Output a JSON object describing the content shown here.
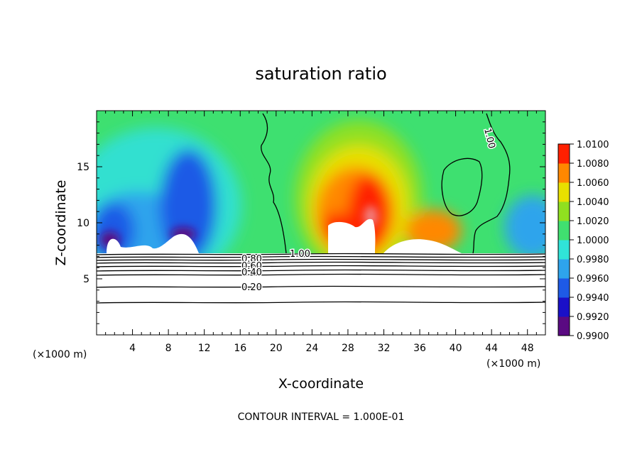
{
  "chart_data": {
    "type": "heatmap",
    "title": "saturation ratio",
    "xlabel": "X-coordinate",
    "ylabel": "Z-coordinate",
    "x_unit_left": "(×1000 m)",
    "x_unit_right": "(×1000 m)",
    "xlim": [
      0,
      50
    ],
    "ylim": [
      0,
      20
    ],
    "x_ticks": [
      "4",
      "8",
      "12",
      "16",
      "20",
      "24",
      "28",
      "32",
      "36",
      "40",
      "44",
      "48"
    ],
    "y_ticks": [
      "5",
      "10",
      "15"
    ],
    "footer": "CONTOUR INTERVAL = 1.000E-01",
    "colorbar": {
      "levels": [
        "0.9900",
        "0.9920",
        "0.9940",
        "0.9960",
        "0.9980",
        "1.0000",
        "1.0020",
        "1.0040",
        "1.0060",
        "1.0080",
        "1.0100"
      ],
      "colors": [
        "#5a0a82",
        "#1a10c8",
        "#1e5ae6",
        "#2ea4ec",
        "#30e4d8",
        "#40e070",
        "#90e020",
        "#e8e000",
        "#ff8800",
        "#ff2000",
        "#f08080"
      ]
    },
    "contours": [
      {
        "label": "1.00",
        "z": 1.0
      },
      {
        "label": "0.80",
        "z": 0.8
      },
      {
        "label": "0.60",
        "z": 0.6
      },
      {
        "label": "0.40",
        "z": 0.4
      },
      {
        "label": "0.20",
        "z": 0.2
      }
    ],
    "cloud_base_z": 7.3
  }
}
